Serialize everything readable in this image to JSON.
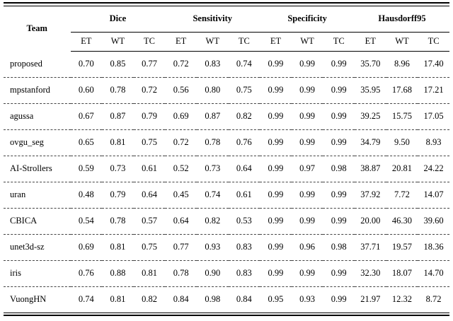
{
  "table": {
    "team_header": "Team",
    "groups": [
      {
        "label": "Dice"
      },
      {
        "label": "Sensitivity"
      },
      {
        "label": "Specificity"
      },
      {
        "label": "Hausdorff95"
      }
    ],
    "subheaders": [
      "ET",
      "WT",
      "TC"
    ],
    "rows": [
      {
        "team": "proposed",
        "values": [
          "0.70",
          "0.85",
          "0.77",
          "0.72",
          "0.83",
          "0.74",
          "0.99",
          "0.99",
          "0.99",
          "35.70",
          "8.96",
          "17.40"
        ]
      },
      {
        "team": "mpstanford",
        "values": [
          "0.60",
          "0.78",
          "0.72",
          "0.56",
          "0.80",
          "0.75",
          "0.99",
          "0.99",
          "0.99",
          "35.95",
          "17.68",
          "17.21"
        ]
      },
      {
        "team": "agussa",
        "values": [
          "0.67",
          "0.87",
          "0.79",
          "0.69",
          "0.87",
          "0.82",
          "0.99",
          "0.99",
          "0.99",
          "39.25",
          "15.75",
          "17.05"
        ]
      },
      {
        "team": "ovgu_seg",
        "values": [
          "0.65",
          "0.81",
          "0.75",
          "0.72",
          "0.78",
          "0.76",
          "0.99",
          "0.99",
          "0.99",
          "34.79",
          "9.50",
          "8.93"
        ]
      },
      {
        "team": "AI-Strollers",
        "values": [
          "0.59",
          "0.73",
          "0.61",
          "0.52",
          "0.73",
          "0.64",
          "0.99",
          "0.97",
          "0.98",
          "38.87",
          "20.81",
          "24.22"
        ]
      },
      {
        "team": "uran",
        "values": [
          "0.48",
          "0.79",
          "0.64",
          "0.45",
          "0.74",
          "0.61",
          "0.99",
          "0.99",
          "0.99",
          "37.92",
          "7.72",
          "14.07"
        ]
      },
      {
        "team": "CBICA",
        "values": [
          "0.54",
          "0.78",
          "0.57",
          "0.64",
          "0.82",
          "0.53",
          "0.99",
          "0.99",
          "0.99",
          "20.00",
          "46.30",
          "39.60"
        ]
      },
      {
        "team": "unet3d-sz",
        "values": [
          "0.69",
          "0.81",
          "0.75",
          "0.77",
          "0.93",
          "0.83",
          "0.99",
          "0.96",
          "0.98",
          "37.71",
          "19.57",
          "18.36"
        ]
      },
      {
        "team": "iris",
        "values": [
          "0.76",
          "0.88",
          "0.81",
          "0.78",
          "0.90",
          "0.83",
          "0.99",
          "0.99",
          "0.99",
          "32.30",
          "18.07",
          "14.70"
        ]
      },
      {
        "team": "VuongHN",
        "values": [
          "0.74",
          "0.81",
          "0.82",
          "0.84",
          "0.98",
          "0.84",
          "0.95",
          "0.93",
          "0.99",
          "21.97",
          "12.32",
          "8.72"
        ]
      }
    ]
  }
}
